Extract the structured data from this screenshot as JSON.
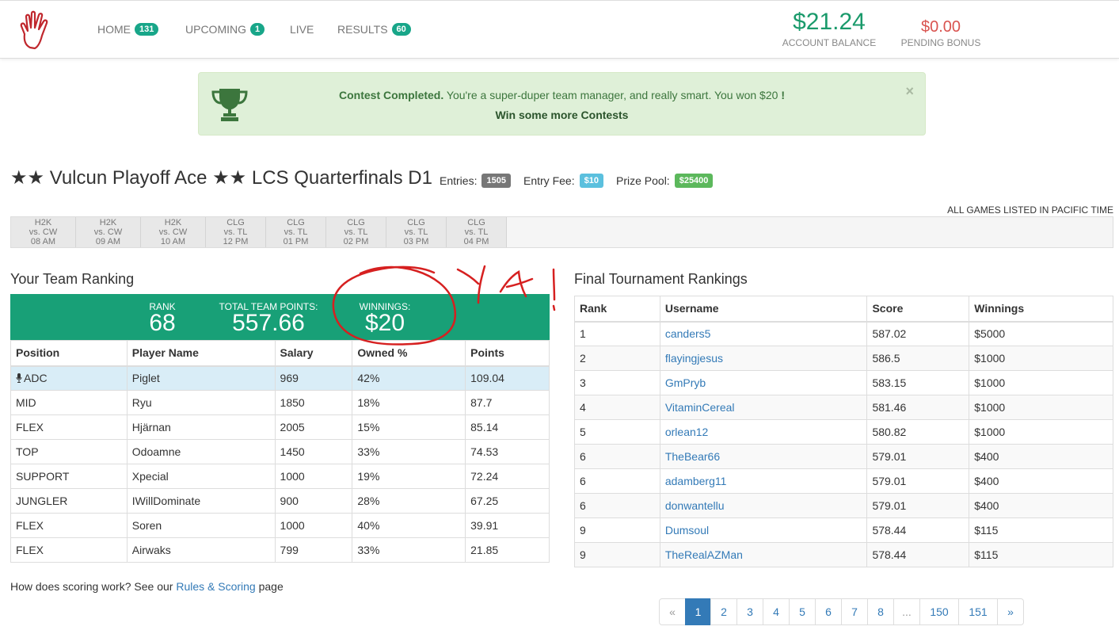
{
  "nav": {
    "items": [
      {
        "label": "HOME",
        "badge": "131"
      },
      {
        "label": "UPCOMING",
        "badge": "1"
      },
      {
        "label": "LIVE",
        "badge": ""
      },
      {
        "label": "RESULTS",
        "badge": "60"
      }
    ],
    "account_balance": {
      "amount": "$21.24",
      "label": "ACCOUNT BALANCE"
    },
    "pending_bonus": {
      "amount": "$0.00",
      "label": "PENDING BONUS"
    }
  },
  "alert": {
    "strong": "Contest Completed.",
    "message": " You're a super-duper team manager, and really smart. You won $20 ",
    "bang": "!",
    "link": "Win some more Contests",
    "close": "×"
  },
  "contest": {
    "title": "★★ Vulcun Playoff Ace ★★ LCS Quarterfinals D1",
    "entries_label": "Entries:",
    "entries": "1505",
    "fee_label": "Entry Fee:",
    "fee": "$10",
    "prize_label": "Prize Pool:",
    "prize": "$25400"
  },
  "timezone_note": "ALL GAMES LISTED IN PACIFIC TIME",
  "games": [
    {
      "home": "H2K",
      "vs": "vs. CW",
      "time": "08 AM"
    },
    {
      "home": "H2K",
      "vs": "vs. CW",
      "time": "09 AM"
    },
    {
      "home": "H2K",
      "vs": "vs. CW",
      "time": "10 AM"
    },
    {
      "home": "CLG",
      "vs": "vs. TL",
      "time": "12 PM"
    },
    {
      "home": "CLG",
      "vs": "vs. TL",
      "time": "01 PM"
    },
    {
      "home": "CLG",
      "vs": "vs. TL",
      "time": "02 PM"
    },
    {
      "home": "CLG",
      "vs": "vs. TL",
      "time": "03 PM"
    },
    {
      "home": "CLG",
      "vs": "vs. TL",
      "time": "04 PM"
    }
  ],
  "team_ranking": {
    "title": "Your Team Ranking",
    "rank_label": "RANK",
    "rank": "68",
    "points_label": "TOTAL TEAM POINTS:",
    "points": "557.66",
    "winnings_label": "WINNINGS:",
    "winnings": "$20",
    "headers": [
      "Position",
      "Player Name",
      "Salary",
      "Owned %",
      "Points"
    ],
    "rows": [
      [
        "ADC",
        "Piglet",
        "969",
        "42%",
        "109.04"
      ],
      [
        "MID",
        "Ryu",
        "1850",
        "18%",
        "87.7"
      ],
      [
        "FLEX",
        "Hjärnan",
        "2005",
        "15%",
        "85.14"
      ],
      [
        "TOP",
        "Odoamne",
        "1450",
        "33%",
        "74.53"
      ],
      [
        "SUPPORT",
        "Xpecial",
        "1000",
        "19%",
        "72.24"
      ],
      [
        "JUNGLER",
        "IWillDominate",
        "900",
        "28%",
        "67.25"
      ],
      [
        "FLEX",
        "Soren",
        "1000",
        "40%",
        "39.91"
      ],
      [
        "FLEX",
        "Airwaks",
        "799",
        "33%",
        "21.85"
      ]
    ]
  },
  "tournament": {
    "title": "Final Tournament Rankings",
    "headers": [
      "Rank",
      "Username",
      "Score",
      "Winnings"
    ],
    "rows": [
      [
        "1",
        "canders5",
        "587.02",
        "$5000"
      ],
      [
        "2",
        "flayingjesus",
        "586.5",
        "$1000"
      ],
      [
        "3",
        "GmPryb",
        "583.15",
        "$1000"
      ],
      [
        "4",
        "VitaminCereal",
        "581.46",
        "$1000"
      ],
      [
        "5",
        "orlean12",
        "580.82",
        "$1000"
      ],
      [
        "6",
        "TheBear66",
        "579.01",
        "$400"
      ],
      [
        "6",
        "adamberg11",
        "579.01",
        "$400"
      ],
      [
        "6",
        "donwantellu",
        "579.01",
        "$400"
      ],
      [
        "9",
        "Dumsoul",
        "578.44",
        "$115"
      ],
      [
        "9",
        "TheRealAZMan",
        "578.44",
        "$115"
      ]
    ]
  },
  "footnote": {
    "before": "How does scoring work? See our ",
    "link": "Rules & Scoring",
    "after": " page"
  },
  "pagination": [
    "«",
    "1",
    "2",
    "3",
    "4",
    "5",
    "6",
    "7",
    "8",
    "...",
    "150",
    "151",
    "»"
  ],
  "colors": {
    "accent": "#18a077",
    "balance": "#1a9a6b",
    "bonus": "#d9534f",
    "link": "#337ab7"
  }
}
